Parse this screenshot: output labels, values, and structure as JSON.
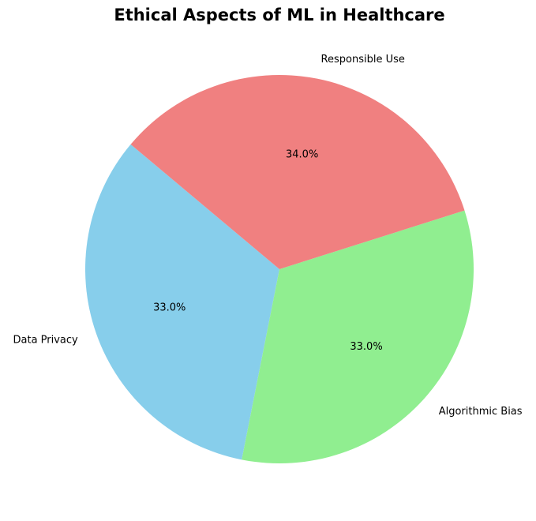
{
  "chart_data": {
    "type": "pie",
    "title": "Ethical Aspects of ML in Healthcare",
    "labels": [
      "Data Privacy",
      "Algorithmic Bias",
      "Responsible Use"
    ],
    "values": [
      33.0,
      33.0,
      34.0
    ],
    "percent_labels": [
      "33.0%",
      "33.0%",
      "34.0%"
    ],
    "colors": [
      "#87CEEB",
      "#90EE90",
      "#F08080"
    ],
    "start_angle_deg": 140,
    "direction": "counterclockwise",
    "legend": "none"
  }
}
